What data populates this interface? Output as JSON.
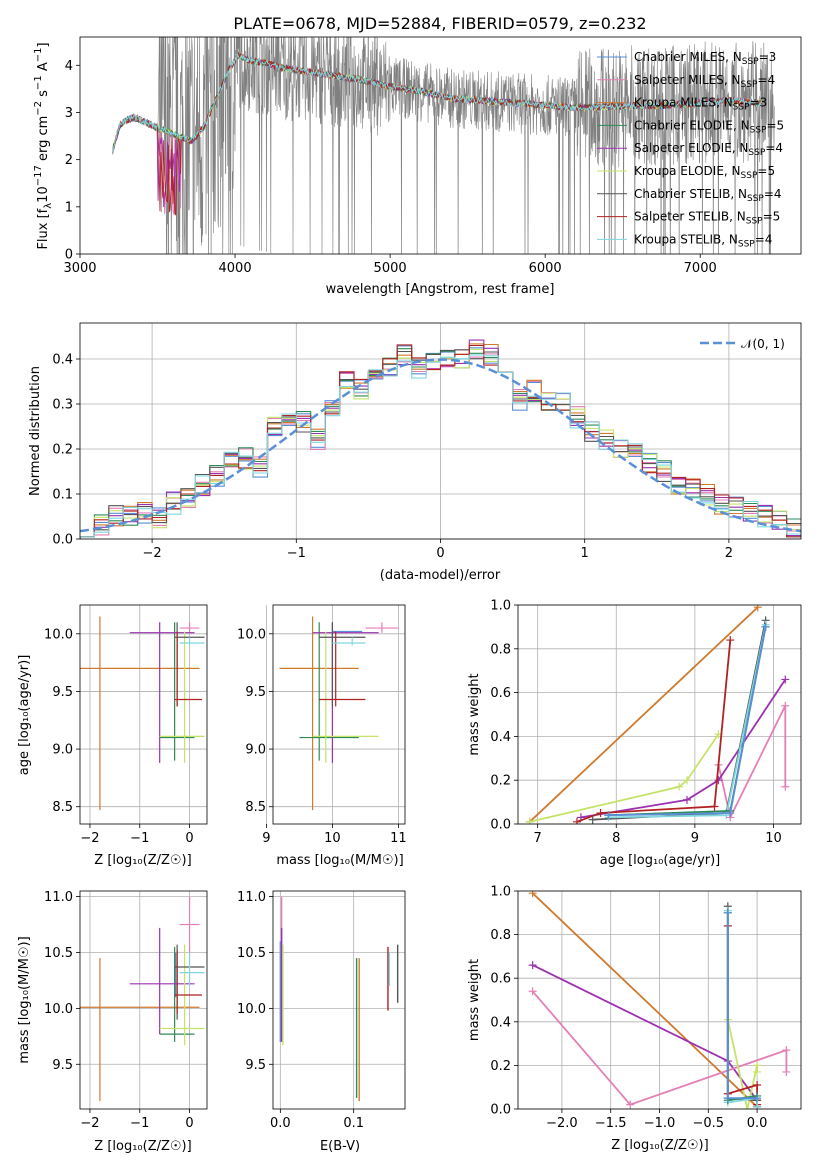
{
  "figure": {
    "title": "PLATE=0678, MJD=52884, FIBERID=0579, z=0.232"
  },
  "colors": {
    "data": "#808080",
    "gaussian": "#5b8fd6"
  },
  "models": [
    {
      "name": "Chabrier MILES",
      "nssp": "3",
      "color": "#5a8fd8",
      "age_logyr": 10.02,
      "age_err": [
        10.02,
        10.02
      ],
      "Z": -0.28,
      "Z_range": [
        -0.28,
        -0.28
      ]
    },
    {
      "name": "Salpeter MILES",
      "nssp": "4",
      "color": "#e47fb6",
      "age_logyr": 10.05,
      "age_err": [
        10.01,
        10.1
      ],
      "Z": 0.0,
      "Z_range": [
        -0.2,
        0.2
      ]
    },
    {
      "name": "Kroupa MILES",
      "nssp": "3",
      "color": "#d07a2e",
      "age_logyr": 9.7,
      "age_err": [
        8.47,
        10.15
      ],
      "Z": -1.8,
      "Z_range": [
        -2.3,
        0.2
      ]
    },
    {
      "name": "Chabrier ELODIE",
      "nssp": "5",
      "color": "#2e8b57",
      "age_logyr": 9.1,
      "age_err": [
        8.9,
        10.1
      ],
      "Z": -0.3,
      "Z_range": [
        -0.6,
        0.1
      ]
    },
    {
      "name": "Salpeter ELODIE",
      "nssp": "4",
      "color": "#9b30b0",
      "age_logyr": 10.01,
      "age_err": [
        8.88,
        10.1
      ],
      "Z": -0.6,
      "Z_range": [
        -1.2,
        0.1
      ]
    },
    {
      "name": "Kroupa ELODIE",
      "nssp": "5",
      "color": "#c5e36a",
      "age_logyr": 9.11,
      "age_err": [
        8.88,
        10.02
      ],
      "Z": -0.1,
      "Z_range": [
        -0.6,
        0.3
      ]
    },
    {
      "name": "Chabrier STELIB",
      "nssp": "4",
      "color": "#555555",
      "age_logyr": 9.97,
      "age_err": [
        9.37,
        10.1
      ],
      "Z": -0.25,
      "Z_range": [
        -0.3,
        0.3
      ]
    },
    {
      "name": "Salpeter STELIB",
      "nssp": "5",
      "color": "#b22222",
      "age_logyr": 9.43,
      "age_err": [
        9.37,
        10.02
      ],
      "Z": -0.25,
      "Z_range": [
        -0.3,
        0.25
      ]
    },
    {
      "name": "Kroupa STELIB",
      "nssp": "4",
      "color": "#7fd6e0",
      "age_logyr": 9.92,
      "age_err": [
        9.9,
        9.97
      ],
      "Z": 0.0,
      "Z_range": [
        -0.2,
        0.3
      ]
    }
  ],
  "chart_data": [
    {
      "type": "line",
      "title": "PLATE=0678, MJD=52884, FIBERID=0579, z=0.232",
      "xlabel": "wavelength [Angstrom, rest frame]",
      "ylabel_main": "Flux [f",
      "ylabel_sub": "λ",
      "ylabel_rest": "10",
      "ylabel_exp": "−17",
      "ylabel_unit": " erg cm",
      "ylabel_unit_exp": "−2",
      "ylabel_s": " s",
      "ylabel_s_exp": "−1",
      "ylabel_A": " A",
      "ylabel_A_exp": "−1",
      "ylabel_end": "]",
      "xlim": [
        3000,
        7650
      ],
      "ylim": [
        0,
        4.6
      ],
      "xticks": [
        "3000",
        "4000",
        "5000",
        "6000",
        "7000"
      ],
      "yticks": [
        "0",
        "1",
        "2",
        "3",
        "4"
      ],
      "continuum_knots": [
        [
          3210,
          2.2
        ],
        [
          3260,
          2.75
        ],
        [
          3340,
          2.9
        ],
        [
          3420,
          2.8
        ],
        [
          3480,
          2.7
        ],
        [
          3560,
          2.6
        ],
        [
          3640,
          2.5
        ],
        [
          3720,
          2.4
        ],
        [
          3800,
          2.7
        ],
        [
          3880,
          3.3
        ],
        [
          3960,
          3.9
        ],
        [
          4020,
          4.2
        ],
        [
          4100,
          4.1
        ],
        [
          4200,
          4.05
        ],
        [
          4300,
          3.95
        ],
        [
          4400,
          3.9
        ],
        [
          4500,
          3.85
        ],
        [
          4600,
          3.8
        ],
        [
          4800,
          3.7
        ],
        [
          5000,
          3.55
        ],
        [
          5200,
          3.45
        ],
        [
          5400,
          3.3
        ],
        [
          5600,
          3.25
        ],
        [
          5800,
          3.2
        ],
        [
          6000,
          3.15
        ],
        [
          6200,
          3.1
        ],
        [
          6400,
          3.12
        ],
        [
          6600,
          3.15
        ],
        [
          6800,
          3.15
        ],
        [
          7000,
          3.2
        ],
        [
          7200,
          3.25
        ],
        [
          7400,
          3.2
        ]
      ],
      "legend_position": "upper right"
    },
    {
      "type": "bar",
      "title": "",
      "xlabel": "(data-model)/error",
      "ylabel": "Normed distribution",
      "xlim": [
        -2.5,
        2.5
      ],
      "ylim": [
        0,
        0.48
      ],
      "xticks": [
        "−2",
        "−1",
        "0",
        "1",
        "2"
      ],
      "yticks": [
        "0.0",
        "0.1",
        "0.2",
        "0.3",
        "0.4"
      ],
      "bin_edges": [
        -2.5,
        -2.4,
        -2.3,
        -2.2,
        -2.1,
        -2.0,
        -1.9,
        -1.8,
        -1.7,
        -1.6,
        -1.5,
        -1.4,
        -1.3,
        -1.2,
        -1.1,
        -1.0,
        -0.9,
        -0.8,
        -0.7,
        -0.6,
        -0.5,
        -0.4,
        -0.3,
        -0.2,
        -0.1,
        0.0,
        0.1,
        0.2,
        0.3,
        0.4,
        0.5,
        0.6,
        0.7,
        0.8,
        0.9,
        1.0,
        1.1,
        1.2,
        1.3,
        1.4,
        1.5,
        1.6,
        1.7,
        1.8,
        1.9,
        2.0,
        2.1,
        2.2,
        2.3,
        2.4,
        2.5
      ],
      "histogram": [
        0.02,
        0.03,
        0.05,
        0.05,
        0.06,
        0.05,
        0.08,
        0.09,
        0.12,
        0.14,
        0.17,
        0.18,
        0.16,
        0.25,
        0.26,
        0.26,
        0.22,
        0.29,
        0.35,
        0.33,
        0.37,
        0.38,
        0.41,
        0.38,
        0.39,
        0.4,
        0.4,
        0.42,
        0.41,
        0.39,
        0.31,
        0.33,
        0.31,
        0.3,
        0.27,
        0.24,
        0.22,
        0.2,
        0.19,
        0.17,
        0.15,
        0.12,
        0.11,
        0.1,
        0.08,
        0.07,
        0.06,
        0.05,
        0.04,
        0.02
      ],
      "legend": "𝒩(0, 1)",
      "legend_position": "upper right"
    },
    {
      "type": "scatter",
      "xlabel": "Z [log₁₀(Z/Z☉)]",
      "ylabel": "age  [log₁₀(age/yr)]",
      "xlim": [
        -2.2,
        0.35
      ],
      "ylim": [
        8.35,
        10.25
      ],
      "xticks": [
        [
          "−2",
          -2
        ],
        [
          "−1",
          -1
        ],
        [
          "0",
          0
        ]
      ],
      "yticks": [
        [
          "8.5",
          8.5
        ],
        [
          "9.0",
          9.0
        ],
        [
          "9.5",
          9.5
        ],
        [
          "10.0",
          10.0
        ]
      ]
    },
    {
      "type": "scatter",
      "xlabel": "mass [log₁₀(M/M☉)]",
      "ylabel": "",
      "xlim": [
        9.1,
        11.1
      ],
      "ylim": [
        8.35,
        10.25
      ],
      "xticks": [
        [
          "9",
          9
        ],
        [
          "10",
          10
        ],
        [
          "11",
          11
        ]
      ],
      "yticks": [
        [
          "8.5",
          8.5
        ],
        [
          "9.0",
          9.0
        ],
        [
          "9.5",
          9.5
        ],
        [
          "10.0",
          10.0
        ]
      ],
      "masses": [
        10.0,
        10.75,
        9.7,
        9.8,
        10.0,
        9.9,
        10.0,
        10.05,
        10.3
      ],
      "mass_err": [
        [
          10.0,
          10.45
        ],
        [
          10.5,
          11.0
        ],
        [
          9.2,
          10.4
        ],
        [
          9.5,
          10.4
        ],
        [
          9.7,
          10.7
        ],
        [
          9.7,
          10.7
        ],
        [
          9.8,
          10.5
        ],
        [
          9.8,
          10.5
        ],
        [
          10.0,
          10.5
        ]
      ]
    },
    {
      "type": "line",
      "xlabel": "age  [log₁₀(age/yr)]",
      "ylabel": "mass weight",
      "xlim": [
        6.75,
        10.35
      ],
      "ylim": [
        0,
        1
      ],
      "xticks": [
        [
          "7",
          7
        ],
        [
          "8",
          8
        ],
        [
          "9",
          9
        ],
        [
          "10",
          10
        ]
      ],
      "yticks": [
        [
          "0.0",
          0
        ],
        [
          "0.2",
          0.2
        ],
        [
          "0.4",
          0.4
        ],
        [
          "0.6",
          0.6
        ],
        [
          "0.8",
          0.8
        ],
        [
          "1.0",
          1.0
        ]
      ],
      "series": [
        {
          "model": 1,
          "points": [
            [
              9.3,
              0.27
            ],
            [
              9.45,
              0.03
            ],
            [
              10.15,
              0.54
            ],
            [
              10.15,
              0.17
            ]
          ]
        },
        {
          "model": 2,
          "points": [
            [
              6.9,
              0.01
            ],
            [
              9.8,
              0.99
            ]
          ]
        },
        {
          "model": 4,
          "points": [
            [
              7.55,
              0.03
            ],
            [
              8.9,
              0.11
            ],
            [
              9.3,
              0.2
            ],
            [
              10.15,
              0.66
            ]
          ]
        },
        {
          "model": 5,
          "points": [
            [
              6.9,
              0.01
            ],
            [
              8.8,
              0.17
            ],
            [
              8.9,
              0.2
            ],
            [
              9.3,
              0.41
            ]
          ]
        },
        {
          "model": 7,
          "points": [
            [
              7.5,
              0.01
            ],
            [
              7.8,
              0.05
            ],
            [
              9.25,
              0.08
            ],
            [
              9.45,
              0.84
            ]
          ]
        },
        {
          "model": 6,
          "points": [
            [
              7.7,
              0.02
            ],
            [
              9.4,
              0.05
            ],
            [
              9.9,
              0.93
            ]
          ]
        },
        {
          "model": 8,
          "points": [
            [
              7.9,
              0.03
            ],
            [
              9.4,
              0.04
            ],
            [
              9.9,
              0.91
            ]
          ]
        },
        {
          "model": 3,
          "points": [
            [
              7.9,
              0.04
            ],
            [
              9.45,
              0.06
            ],
            [
              9.9,
              0.9
            ]
          ]
        },
        {
          "model": 0,
          "points": [
            [
              7.9,
              0.04
            ],
            [
              9.45,
              0.05
            ],
            [
              9.9,
              0.9
            ]
          ]
        }
      ]
    },
    {
      "type": "scatter",
      "xlabel": "Z [log₁₀(Z/Z☉)]",
      "ylabel": "mass [log₁₀(M/M☉)]",
      "xlim": [
        -2.2,
        0.35
      ],
      "ylim": [
        9.1,
        11.05
      ],
      "xticks": [
        [
          "−2",
          -2
        ],
        [
          "−1",
          -1
        ],
        [
          "0",
          0
        ]
      ],
      "yticks": [
        [
          "9.5",
          9.5
        ],
        [
          "10.0",
          10.0
        ],
        [
          "10.5",
          10.5
        ],
        [
          "11.0",
          11.0
        ]
      ],
      "masses": [
        10.28,
        10.75,
        10.01,
        9.77,
        10.22,
        9.82,
        10.37,
        10.12,
        10.32
      ],
      "mass_err": [
        [
          10.1,
          10.5
        ],
        [
          10.5,
          11.0
        ],
        [
          9.17,
          10.45
        ],
        [
          9.7,
          10.55
        ],
        [
          9.77,
          10.72
        ],
        [
          9.67,
          10.57
        ],
        [
          9.9,
          10.57
        ],
        [
          9.95,
          10.52
        ],
        [
          10.2,
          10.5
        ]
      ]
    },
    {
      "type": "scatter",
      "xlabel": "E(B-V)",
      "ylabel": "",
      "xlim": [
        -0.01,
        0.17
      ],
      "ylim": [
        9.1,
        11.05
      ],
      "xticks": [
        [
          "0.0",
          0
        ],
        [
          "0.1",
          0.1
        ]
      ],
      "yticks": [
        [
          "9.5",
          9.5
        ],
        [
          "10.0",
          10.0
        ],
        [
          "10.5",
          10.5
        ],
        [
          "11.0",
          11.0
        ]
      ],
      "ebv": [
        0.0,
        0.0,
        0.104,
        0.104,
        0.0,
        0.0,
        0.16,
        0.145,
        0.145
      ],
      "mass_err": [
        [
          9.7,
          10.6
        ],
        [
          10.5,
          11.0
        ],
        [
          9.17,
          10.45
        ],
        [
          9.2,
          10.45
        ],
        [
          9.7,
          10.72
        ],
        [
          9.67,
          10.57
        ],
        [
          10.05,
          10.57
        ],
        [
          9.98,
          10.55
        ],
        [
          10.2,
          10.5
        ]
      ]
    },
    {
      "type": "line",
      "xlabel": "Z [log₁₀(Z/Z☉)]",
      "ylabel": "mass weight",
      "xlim": [
        -2.45,
        0.45
      ],
      "ylim": [
        0,
        1
      ],
      "xticks": [
        [
          "−2.0",
          -2.0
        ],
        [
          "−1.5",
          -1.5
        ],
        [
          "−1.0",
          -1.0
        ],
        [
          "−0.5",
          -0.5
        ],
        [
          "0.0",
          0.0
        ]
      ],
      "yticks": [
        [
          "0.0",
          0
        ],
        [
          "0.2",
          0.2
        ],
        [
          "0.4",
          0.4
        ],
        [
          "0.6",
          0.6
        ],
        [
          "0.8",
          0.8
        ],
        [
          "1.0",
          1.0
        ]
      ],
      "series": [
        {
          "model": 2,
          "points": [
            [
              -2.3,
              0.99
            ],
            [
              0.0,
              0.01
            ]
          ]
        },
        {
          "model": 4,
          "points": [
            [
              -2.3,
              0.66
            ],
            [
              -0.3,
              0.22
            ],
            [
              0.0,
              0.04
            ]
          ]
        },
        {
          "model": 1,
          "points": [
            [
              -2.3,
              0.54
            ],
            [
              -1.3,
              0.02
            ],
            [
              0.3,
              0.27
            ],
            [
              0.3,
              0.17
            ]
          ]
        },
        {
          "model": 5,
          "points": [
            [
              -0.3,
              0.41
            ],
            [
              -0.1,
              0.0
            ],
            [
              0.0,
              0.2
            ],
            [
              0.0,
              0.17
            ]
          ]
        },
        {
          "model": 6,
          "points": [
            [
              -0.3,
              0.93
            ],
            [
              -0.3,
              0.05
            ],
            [
              0.0,
              0.04
            ],
            [
              0.0,
              0.01
            ]
          ]
        },
        {
          "model": 7,
          "points": [
            [
              -0.3,
              0.84
            ],
            [
              -0.3,
              0.07
            ],
            [
              0.0,
              0.11
            ],
            [
              0.0,
              0.02
            ]
          ]
        },
        {
          "model": 8,
          "points": [
            [
              -0.3,
              0.91
            ],
            [
              -0.3,
              0.03
            ],
            [
              0.0,
              0.05
            ],
            [
              0.0,
              0.01
            ]
          ]
        },
        {
          "model": 3,
          "points": [
            [
              -0.3,
              0.9
            ],
            [
              -0.3,
              0.04
            ],
            [
              0.0,
              0.06
            ]
          ]
        },
        {
          "model": 0,
          "points": [
            [
              -0.3,
              0.9
            ],
            [
              -0.3,
              0.05
            ],
            [
              0.0,
              0.05
            ]
          ]
        }
      ]
    }
  ]
}
